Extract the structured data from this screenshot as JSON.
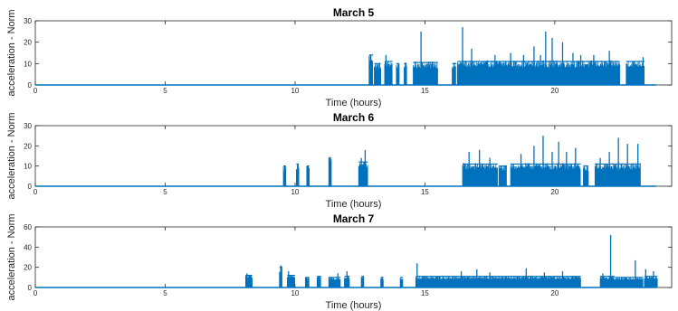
{
  "chart_data": [
    {
      "type": "line",
      "title": "March 5",
      "xlabel": "Time (hours)",
      "ylabel": "acceleration - Norm",
      "xlim": [
        0,
        24.5
      ],
      "ylim": [
        0,
        30
      ],
      "xticks": [
        0,
        5,
        10,
        15,
        20
      ],
      "yticks": [
        0,
        10,
        20,
        30
      ],
      "grid": false,
      "series": [
        {
          "color": "#0072BD",
          "baseline": 0,
          "bursts": [
            {
              "start": 12.85,
              "end": 13.0,
              "level": 14
            },
            {
              "start": 13.05,
              "end": 13.3,
              "level": 10
            },
            {
              "start": 13.45,
              "end": 13.75,
              "level": 11
            },
            {
              "start": 13.9,
              "end": 14.0,
              "level": 10
            },
            {
              "start": 14.2,
              "end": 14.3,
              "level": 10
            },
            {
              "start": 14.55,
              "end": 15.5,
              "level": 10.5
            },
            {
              "start": 16.05,
              "end": 16.2,
              "level": 10
            },
            {
              "start": 16.25,
              "end": 22.5,
              "level": 11
            },
            {
              "start": 22.75,
              "end": 23.45,
              "level": 11
            }
          ],
          "peaks": [
            {
              "x": 12.9,
              "y": 14
            },
            {
              "x": 13.5,
              "y": 14
            },
            {
              "x": 14.0,
              "y": 10
            },
            {
              "x": 14.85,
              "y": 25
            },
            {
              "x": 15.3,
              "y": 11
            },
            {
              "x": 16.45,
              "y": 27
            },
            {
              "x": 16.8,
              "y": 17
            },
            {
              "x": 17.7,
              "y": 14
            },
            {
              "x": 18.3,
              "y": 15
            },
            {
              "x": 18.8,
              "y": 14
            },
            {
              "x": 19.2,
              "y": 18
            },
            {
              "x": 19.45,
              "y": 14
            },
            {
              "x": 19.65,
              "y": 25
            },
            {
              "x": 19.9,
              "y": 22
            },
            {
              "x": 20.3,
              "y": 20
            },
            {
              "x": 20.7,
              "y": 15
            },
            {
              "x": 21.0,
              "y": 14
            },
            {
              "x": 21.5,
              "y": 14
            },
            {
              "x": 22.1,
              "y": 16
            },
            {
              "x": 23.4,
              "y": 13
            }
          ]
        }
      ]
    },
    {
      "type": "line",
      "title": "March 6",
      "xlabel": "Time (hours)",
      "ylabel": "acceleration - Norm",
      "xlim": [
        0,
        24.5
      ],
      "ylim": [
        0,
        30
      ],
      "xticks": [
        0,
        5,
        10,
        15,
        20
      ],
      "yticks": [
        0,
        10,
        20,
        30
      ],
      "grid": false,
      "series": [
        {
          "color": "#0072BD",
          "baseline": 0,
          "bursts": [
            {
              "start": 9.55,
              "end": 9.65,
              "level": 10
            },
            {
              "start": 10.05,
              "end": 10.15,
              "level": 11
            },
            {
              "start": 10.45,
              "end": 10.55,
              "level": 10
            },
            {
              "start": 11.3,
              "end": 11.4,
              "level": 14
            },
            {
              "start": 12.45,
              "end": 12.8,
              "level": 12
            },
            {
              "start": 16.45,
              "end": 17.8,
              "level": 11
            },
            {
              "start": 17.85,
              "end": 18.15,
              "level": 10
            },
            {
              "start": 18.3,
              "end": 21.0,
              "level": 11
            },
            {
              "start": 21.1,
              "end": 21.3,
              "level": 10
            },
            {
              "start": 21.55,
              "end": 23.3,
              "level": 11
            }
          ],
          "peaks": [
            {
              "x": 9.6,
              "y": 10
            },
            {
              "x": 10.1,
              "y": 11
            },
            {
              "x": 10.5,
              "y": 10
            },
            {
              "x": 11.35,
              "y": 14
            },
            {
              "x": 12.55,
              "y": 14
            },
            {
              "x": 12.7,
              "y": 18
            },
            {
              "x": 16.7,
              "y": 17
            },
            {
              "x": 17.1,
              "y": 18
            },
            {
              "x": 17.5,
              "y": 14
            },
            {
              "x": 18.7,
              "y": 16
            },
            {
              "x": 19.2,
              "y": 20
            },
            {
              "x": 19.55,
              "y": 25
            },
            {
              "x": 19.9,
              "y": 17
            },
            {
              "x": 20.15,
              "y": 22
            },
            {
              "x": 20.45,
              "y": 17
            },
            {
              "x": 20.8,
              "y": 19
            },
            {
              "x": 21.75,
              "y": 14
            },
            {
              "x": 22.1,
              "y": 17
            },
            {
              "x": 22.45,
              "y": 24
            },
            {
              "x": 22.8,
              "y": 21
            },
            {
              "x": 23.2,
              "y": 21
            }
          ]
        }
      ]
    },
    {
      "type": "line",
      "title": "March 7",
      "xlabel": "Time (hours)",
      "ylabel": "acceleration - Norm",
      "xlim": [
        0,
        24.5
      ],
      "ylim": [
        0,
        60
      ],
      "xticks": [
        0,
        5,
        10,
        15,
        20
      ],
      "yticks": [
        0,
        20,
        40,
        60
      ],
      "grid": false,
      "series": [
        {
          "color": "#0072BD",
          "baseline": 0,
          "bursts": [
            {
              "start": 8.1,
              "end": 8.35,
              "level": 12
            },
            {
              "start": 9.4,
              "end": 9.5,
              "level": 20
            },
            {
              "start": 9.7,
              "end": 10.0,
              "level": 12
            },
            {
              "start": 10.4,
              "end": 10.55,
              "level": 10
            },
            {
              "start": 10.85,
              "end": 11.0,
              "level": 11
            },
            {
              "start": 11.3,
              "end": 11.75,
              "level": 10
            },
            {
              "start": 11.9,
              "end": 12.1,
              "level": 11
            },
            {
              "start": 12.55,
              "end": 12.65,
              "level": 11
            },
            {
              "start": 13.3,
              "end": 13.4,
              "level": 10
            },
            {
              "start": 14.05,
              "end": 14.15,
              "level": 10
            },
            {
              "start": 14.65,
              "end": 21.0,
              "level": 11
            },
            {
              "start": 21.75,
              "end": 22.3,
              "level": 11
            },
            {
              "start": 22.3,
              "end": 23.4,
              "level": 10
            },
            {
              "start": 23.45,
              "end": 23.95,
              "level": 11
            }
          ],
          "peaks": [
            {
              "x": 8.15,
              "y": 14
            },
            {
              "x": 9.45,
              "y": 22
            },
            {
              "x": 9.75,
              "y": 16
            },
            {
              "x": 11.65,
              "y": 14
            },
            {
              "x": 12.0,
              "y": 16
            },
            {
              "x": 14.7,
              "y": 24
            },
            {
              "x": 16.4,
              "y": 16
            },
            {
              "x": 17.0,
              "y": 18
            },
            {
              "x": 17.5,
              "y": 15
            },
            {
              "x": 18.9,
              "y": 19
            },
            {
              "x": 19.6,
              "y": 15
            },
            {
              "x": 20.3,
              "y": 16
            },
            {
              "x": 21.85,
              "y": 14
            },
            {
              "x": 22.15,
              "y": 52
            },
            {
              "x": 23.1,
              "y": 27
            },
            {
              "x": 23.5,
              "y": 18
            },
            {
              "x": 23.8,
              "y": 16
            }
          ]
        }
      ]
    }
  ]
}
